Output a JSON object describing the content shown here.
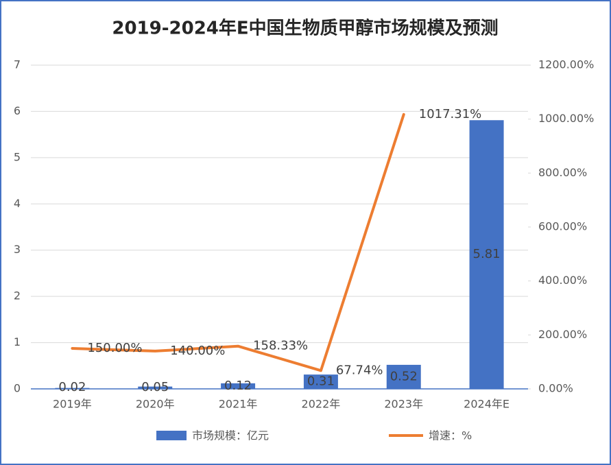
{
  "chart_data": {
    "type": "bar_line",
    "title": "2019-2024年E中国生物质甲醇市场规模及预测",
    "categories": [
      "2019年",
      "2020年",
      "2021年",
      "2022年",
      "2023年",
      "2024年E"
    ],
    "series": [
      {
        "name": "市场规模：亿元",
        "color": "#4472c4",
        "type": "bar",
        "values": [
          0.02,
          0.05,
          0.12,
          0.31,
          0.52,
          5.81
        ]
      },
      {
        "name": "增速：%",
        "color": "#ed7d31",
        "type": "line",
        "axis": "y2",
        "values": [
          150,
          140,
          158.33,
          67.74,
          1017.31,
          null
        ],
        "value_labels": [
          "150.00%",
          "140.00%",
          "158.33%",
          "67.74%",
          "1017.31%",
          null
        ]
      }
    ],
    "ylim": [
      0,
      7
    ],
    "yticks": [
      0,
      1,
      2,
      3,
      4,
      5,
      6,
      7
    ],
    "y2lim": [
      0,
      1200
    ],
    "y2ticks": [
      {
        "value": 0,
        "label": "0.00%"
      },
      {
        "value": 200,
        "label": "200.00%"
      },
      {
        "value": 400,
        "label": "400.00%"
      },
      {
        "value": 600,
        "label": "600.00%"
      },
      {
        "value": 800,
        "label": "800.00%"
      },
      {
        "value": 1000,
        "label": "1000.00%"
      },
      {
        "value": 1200,
        "label": "1200.00%"
      }
    ],
    "grid": true,
    "legend": "bottom"
  }
}
